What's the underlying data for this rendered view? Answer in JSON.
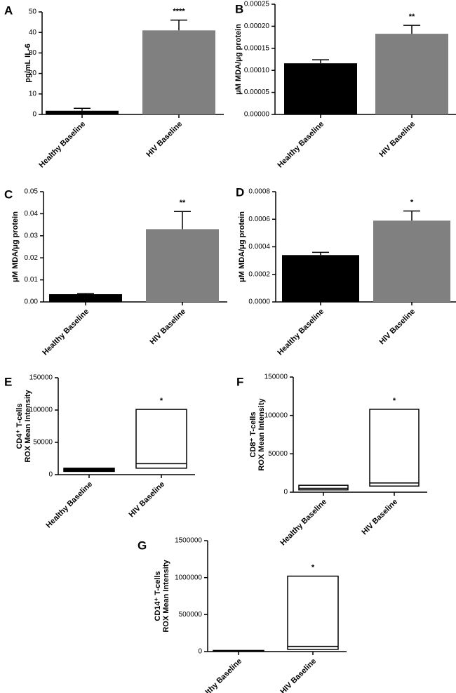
{
  "chart_data": [
    {
      "type": "bar",
      "label": "A",
      "ylabel": [
        "pg/mL IL-6"
      ],
      "categories": [
        "Healthy Baseline",
        "HIV Baseline"
      ],
      "values": [
        1.8,
        41
      ],
      "errors": [
        1.2,
        5
      ],
      "colors": [
        "#000000",
        "#808080"
      ],
      "annotation": "****",
      "ylim": [
        0,
        50
      ],
      "yticks": [
        0,
        10,
        20,
        30,
        40,
        50
      ]
    },
    {
      "type": "bar",
      "label": "B",
      "ylabel": [
        "μM MDA/μg protein"
      ],
      "categories": [
        "Healthy Baseline",
        "HIV Baseline"
      ],
      "values": [
        0.000116,
        0.000183
      ],
      "errors": [
        8e-06,
        1.9e-05
      ],
      "colors": [
        "#000000",
        "#808080"
      ],
      "annotation": "**",
      "ylim": [
        0,
        0.00025
      ],
      "yticks": [
        {
          "value": 0,
          "label": "0.00000"
        },
        {
          "value": 5e-05,
          "label": "0.00005"
        },
        {
          "value": 0.0001,
          "label": "0.00010"
        },
        {
          "value": 0.00015,
          "label": "0.00015"
        },
        {
          "value": 0.0002,
          "label": "0.00020"
        },
        {
          "value": 0.00025,
          "label": "0.00025"
        }
      ]
    },
    {
      "type": "bar",
      "label": "C",
      "ylabel": [
        "μM MDA/μg protein"
      ],
      "categories": [
        "Healthy Baseline",
        "HIV Baseline"
      ],
      "values": [
        0.0035,
        0.033
      ],
      "errors": [
        0.0003,
        0.008
      ],
      "colors": [
        "#000000",
        "#808080"
      ],
      "annotation": "**",
      "ylim": [
        0,
        0.05
      ],
      "yticks": [
        {
          "value": 0,
          "label": "0.00"
        },
        {
          "value": 0.01,
          "label": "0.01"
        },
        {
          "value": 0.02,
          "label": "0.02"
        },
        {
          "value": 0.03,
          "label": "0.03"
        },
        {
          "value": 0.04,
          "label": "0.04"
        },
        {
          "value": 0.05,
          "label": "0.05"
        }
      ]
    },
    {
      "type": "bar",
      "label": "D",
      "ylabel": [
        "μM MDA/μg protein"
      ],
      "categories": [
        "Healthy Baseline",
        "HIV Baseline"
      ],
      "values": [
        0.00034,
        0.00059
      ],
      "errors": [
        2e-05,
        7e-05
      ],
      "colors": [
        "#000000",
        "#808080"
      ],
      "annotation": "*",
      "ylim": [
        0,
        0.0008
      ],
      "yticks": [
        {
          "value": 0,
          "label": "0.0000"
        },
        {
          "value": 0.0002,
          "label": "0.0002"
        },
        {
          "value": 0.0004,
          "label": "0.0004"
        },
        {
          "value": 0.0006,
          "label": "0.0006"
        },
        {
          "value": 0.0008,
          "label": "0.0008"
        }
      ]
    },
    {
      "type": "box",
      "label": "E",
      "ylabel": [
        "CD4⁺ T-cells",
        "ROX  Mean  Intensity"
      ],
      "categories": [
        "Healthy Baseline",
        "HIV Baseline"
      ],
      "boxes": [
        {
          "low": 5000,
          "median": 7000,
          "high": 10000
        },
        {
          "low": 10000,
          "median": 17000,
          "high": 101000
        }
      ],
      "colors": [
        "#000000",
        "#ffffff"
      ],
      "annotation": "*",
      "ylim": [
        0,
        150000
      ],
      "yticks": [
        0,
        50000,
        100000,
        150000
      ]
    },
    {
      "type": "box",
      "label": "F",
      "ylabel": [
        "CD8⁺ T-cells",
        "ROX  Mean  Intensity"
      ],
      "categories": [
        "Healthy Baseline",
        "HIV Baseline"
      ],
      "boxes": [
        {
          "low": 3000,
          "median": 5000,
          "high": 9000
        },
        {
          "low": 8000,
          "median": 12000,
          "high": 108000
        }
      ],
      "colors": [
        "#ffffff",
        "#ffffff"
      ],
      "annotation": "*",
      "ylim": [
        0,
        150000
      ],
      "yticks": [
        0,
        50000,
        100000,
        150000
      ]
    },
    {
      "type": "box",
      "label": "G",
      "ylabel": [
        "CD14⁺ T-cells",
        "ROX  Mean  Intensity"
      ],
      "categories": [
        "Healthy Baseline",
        "HIV Baseline"
      ],
      "boxes": [
        {
          "low": 2000,
          "median": 8000,
          "high": 15000
        },
        {
          "low": 30000,
          "median": 70000,
          "high": 1020000
        }
      ],
      "colors": [
        "#ffffff",
        "#ffffff"
      ],
      "annotation": "*",
      "ylim": [
        0,
        1500000
      ],
      "yticks": [
        0,
        500000,
        1000000,
        1500000
      ]
    }
  ]
}
